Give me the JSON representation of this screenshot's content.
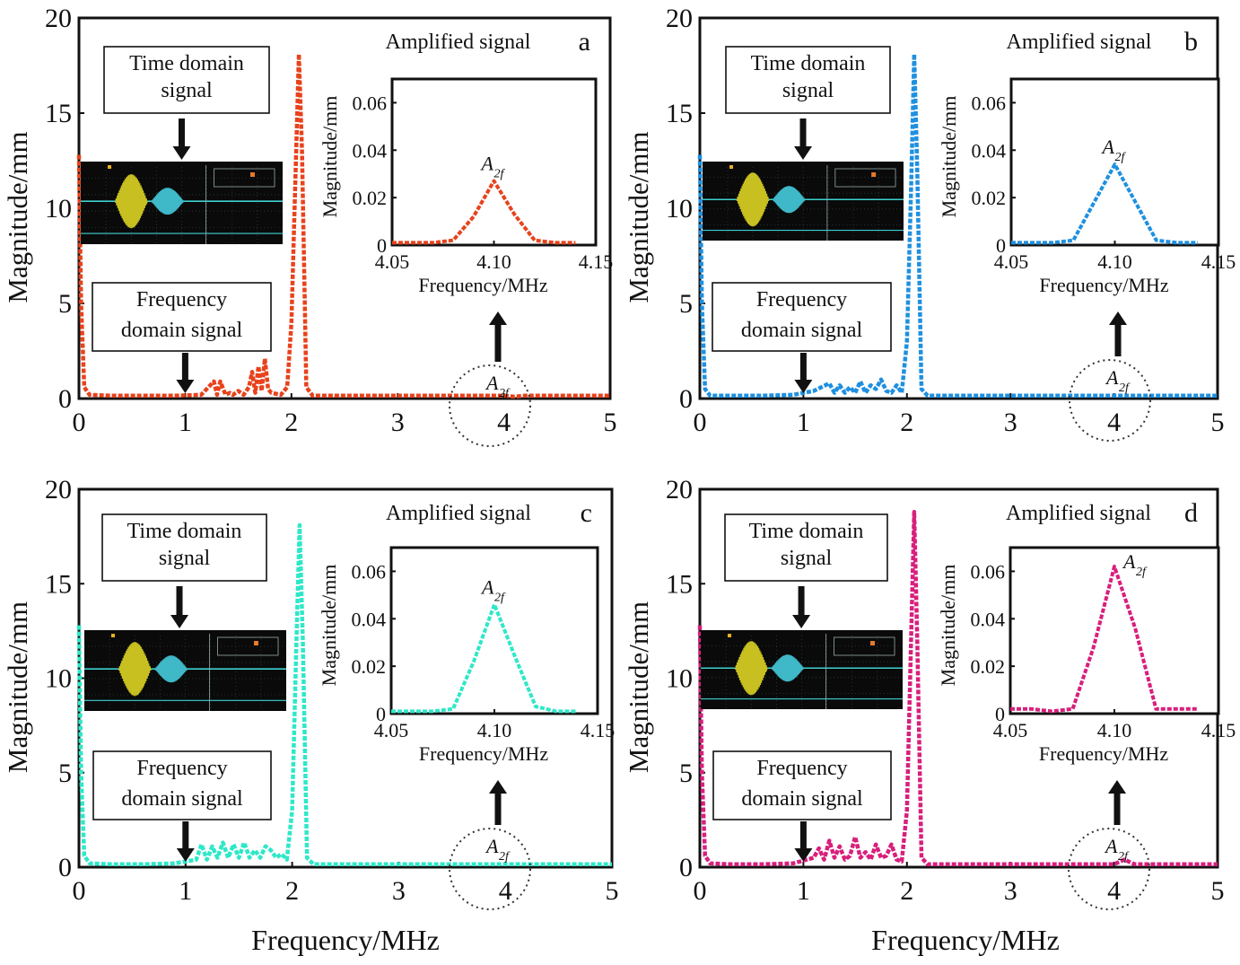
{
  "global": {
    "xlabel": "Frequency/MHz",
    "ylabel": "Magnitude/mm"
  },
  "labels": {
    "time_domain": [
      "Time domain",
      "signal"
    ],
    "freq_domain": [
      "Frequency",
      "domain signal"
    ],
    "amplified": "Amplified signal",
    "peak_label": "A",
    "peak_sub": "2f"
  },
  "chart_data": [
    {
      "panel": "a",
      "type": "line",
      "color": "#e8421c",
      "xlim": [
        0,
        5
      ],
      "ylim": [
        0,
        20
      ],
      "xticks": [
        "0",
        "1",
        "2",
        "3",
        "4",
        "5"
      ],
      "yticks": [
        "0",
        "5",
        "10",
        "15",
        "20"
      ],
      "x": [
        0,
        0.02,
        0.05,
        0.1,
        0.3,
        0.6,
        0.9,
        1.15,
        1.27,
        1.3,
        1.33,
        1.38,
        1.42,
        1.45,
        1.5,
        1.55,
        1.6,
        1.63,
        1.66,
        1.69,
        1.72,
        1.75,
        1.78,
        1.81,
        1.9,
        1.96,
        2.0,
        2.04,
        2.07,
        2.1,
        2.14,
        2.2,
        3,
        4,
        4.1,
        4.2,
        5
      ],
      "y": [
        12.8,
        5,
        0.6,
        0.2,
        0.15,
        0.15,
        0.15,
        0.2,
        0.9,
        0.2,
        0.9,
        0.2,
        0.3,
        0.2,
        0.4,
        0.2,
        0.6,
        1.4,
        0.3,
        1.7,
        0.4,
        2.1,
        0.5,
        0.3,
        0.2,
        0.6,
        4,
        12,
        18.1,
        13,
        0.6,
        0.15,
        0.15,
        0.15,
        0.1,
        0.15,
        0.15
      ],
      "inset": {
        "xlim": [
          4.05,
          4.15
        ],
        "ylim": [
          0,
          0.07
        ],
        "xticks": [
          "4.05",
          "4.10",
          "4.15"
        ],
        "yticks": [
          "0",
          "0.02",
          "0.04",
          "0.06"
        ],
        "x": [
          4.05,
          4.06,
          4.07,
          4.08,
          4.09,
          4.1,
          4.11,
          4.12,
          4.13,
          4.14
        ],
        "y": [
          0.001,
          0.001,
          0.001,
          0.002,
          0.012,
          0.027,
          0.013,
          0.002,
          0.001,
          0.001
        ]
      }
    },
    {
      "panel": "b",
      "type": "line",
      "color": "#1e90e0",
      "xlim": [
        0,
        5
      ],
      "ylim": [
        0,
        20
      ],
      "xticks": [
        "0",
        "1",
        "2",
        "3",
        "4",
        "5"
      ],
      "yticks": [
        "0",
        "5",
        "10",
        "15",
        "20"
      ],
      "x": [
        0,
        0.02,
        0.05,
        0.1,
        0.3,
        0.6,
        0.9,
        1.1,
        1.25,
        1.3,
        1.35,
        1.4,
        1.45,
        1.5,
        1.55,
        1.6,
        1.65,
        1.7,
        1.75,
        1.8,
        1.85,
        1.9,
        1.95,
        2.0,
        2.04,
        2.07,
        2.1,
        2.14,
        2.2,
        3,
        4,
        4.1,
        4.2,
        5
      ],
      "y": [
        12.8,
        5,
        0.5,
        0.15,
        0.15,
        0.15,
        0.2,
        0.4,
        0.8,
        0.3,
        0.7,
        0.3,
        0.6,
        0.3,
        0.9,
        0.3,
        0.7,
        0.5,
        1.0,
        0.4,
        0.3,
        0.7,
        0.3,
        3,
        11,
        18.1,
        12,
        0.5,
        0.15,
        0.15,
        0.15,
        0.15,
        0.15,
        0.15
      ],
      "inset": {
        "xlim": [
          4.05,
          4.15
        ],
        "ylim": [
          0,
          0.07
        ],
        "xticks": [
          "4.05",
          "4.10",
          "4.15"
        ],
        "yticks": [
          "0",
          "0.02",
          "0.04",
          "0.06"
        ],
        "x": [
          4.05,
          4.06,
          4.07,
          4.08,
          4.09,
          4.1,
          4.11,
          4.12,
          4.13,
          4.14
        ],
        "y": [
          0.001,
          0.001,
          0.001,
          0.002,
          0.018,
          0.034,
          0.018,
          0.002,
          0.001,
          0.001
        ]
      }
    },
    {
      "panel": "c",
      "type": "line",
      "color": "#2ee8c8",
      "xlim": [
        0,
        5
      ],
      "ylim": [
        0,
        20
      ],
      "xticks": [
        "0",
        "1",
        "2",
        "3",
        "4",
        "5"
      ],
      "yticks": [
        "0",
        "5",
        "10",
        "15",
        "20"
      ],
      "x": [
        0,
        0.02,
        0.05,
        0.1,
        0.3,
        0.6,
        0.9,
        1.1,
        1.15,
        1.2,
        1.25,
        1.3,
        1.35,
        1.4,
        1.45,
        1.5,
        1.55,
        1.6,
        1.65,
        1.7,
        1.75,
        1.8,
        1.85,
        1.9,
        1.95,
        2.0,
        2.04,
        2.07,
        2.1,
        2.14,
        2.2,
        3,
        4,
        4.1,
        4.2,
        5
      ],
      "y": [
        12.8,
        5,
        0.6,
        0.2,
        0.15,
        0.15,
        0.2,
        0.4,
        1.2,
        0.4,
        1.1,
        0.5,
        1.3,
        0.5,
        1.2,
        0.5,
        1.3,
        0.5,
        0.9,
        0.5,
        1.1,
        0.9,
        0.5,
        0.7,
        0.4,
        3,
        12,
        18.1,
        12,
        0.5,
        0.15,
        0.15,
        0.15,
        0.15,
        0.15,
        0.15
      ],
      "inset": {
        "xlim": [
          4.05,
          4.15
        ],
        "ylim": [
          0,
          0.07
        ],
        "xticks": [
          "4.05",
          "4.10",
          "4.15"
        ],
        "yticks": [
          "0",
          "0.02",
          "0.04",
          "0.06"
        ],
        "x": [
          4.05,
          4.06,
          4.07,
          4.08,
          4.09,
          4.1,
          4.11,
          4.12,
          4.13,
          4.14
        ],
        "y": [
          0.001,
          0.001,
          0.001,
          0.002,
          0.022,
          0.046,
          0.024,
          0.003,
          0.001,
          0.001
        ]
      }
    },
    {
      "panel": "d",
      "type": "line",
      "color": "#d81f7c",
      "xlim": [
        0,
        5
      ],
      "ylim": [
        0,
        20
      ],
      "xticks": [
        "0",
        "1",
        "2",
        "3",
        "4",
        "5"
      ],
      "yticks": [
        "0",
        "5",
        "10",
        "15",
        "20"
      ],
      "x": [
        0,
        0.02,
        0.05,
        0.1,
        0.3,
        0.6,
        0.9,
        1.1,
        1.15,
        1.2,
        1.25,
        1.3,
        1.35,
        1.4,
        1.45,
        1.5,
        1.55,
        1.6,
        1.65,
        1.7,
        1.75,
        1.8,
        1.85,
        1.9,
        1.95,
        2.0,
        2.04,
        2.07,
        2.1,
        2.14,
        2.2,
        3,
        4,
        4.1,
        4.2,
        5
      ],
      "y": [
        12.8,
        5,
        0.6,
        0.2,
        0.15,
        0.15,
        0.2,
        0.5,
        1.0,
        0.4,
        1.4,
        0.5,
        1.1,
        0.4,
        0.6,
        1.6,
        0.5,
        0.8,
        0.4,
        1.2,
        0.5,
        0.6,
        1.2,
        0.4,
        0.3,
        3,
        12,
        18.8,
        12,
        0.5,
        0.15,
        0.15,
        0.15,
        0.4,
        0.15,
        0.15
      ],
      "inset": {
        "xlim": [
          4.05,
          4.15
        ],
        "ylim": [
          0,
          0.07
        ],
        "xticks": [
          "4.05",
          "4.10",
          "4.15"
        ],
        "yticks": [
          "0",
          "0.02",
          "0.04",
          "0.06"
        ],
        "x": [
          4.05,
          4.06,
          4.07,
          4.08,
          4.09,
          4.1,
          4.11,
          4.12,
          4.13,
          4.14
        ],
        "y": [
          0.002,
          0.002,
          0.001,
          0.002,
          0.028,
          0.062,
          0.036,
          0.002,
          0.002,
          0.002
        ]
      }
    }
  ]
}
